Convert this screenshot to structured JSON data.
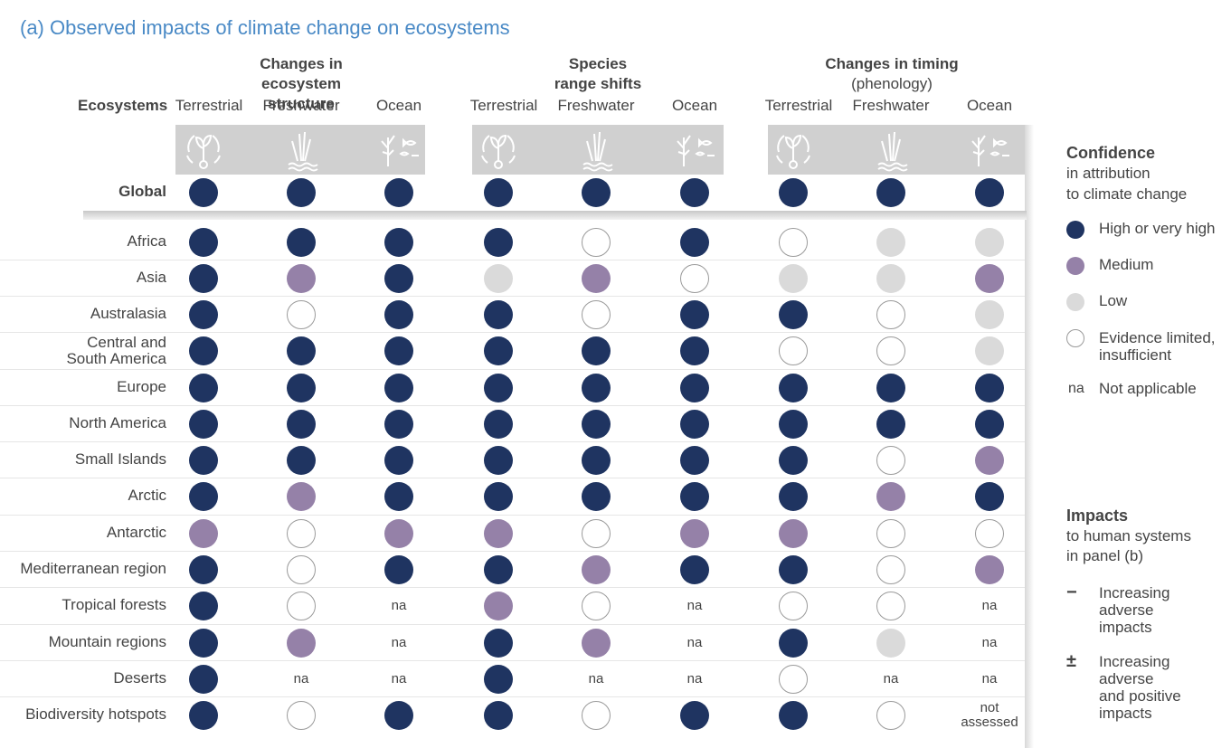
{
  "title": "(a) Observed impacts of climate change on ecosystems",
  "ecosystems_label": "Ecosystems",
  "groups": [
    {
      "line1": "Changes in",
      "line2": "ecosystem structure",
      "sub": ""
    },
    {
      "line1": "Species",
      "line2": "range shifts",
      "sub": ""
    },
    {
      "line1": "Changes in timing",
      "line2": "",
      "sub": "(phenology)"
    }
  ],
  "columns": [
    "Terrestrial",
    "Freshwater",
    "Ocean",
    "Terrestrial",
    "Freshwater",
    "Ocean",
    "Terrestrial",
    "Freshwater",
    "Ocean"
  ],
  "icons": [
    "terrestrial-icon",
    "freshwater-icon",
    "ocean-icon"
  ],
  "colors": {
    "high": "#1f3461",
    "medium": "#9581a8",
    "low": "#dadada",
    "limited": "#ffffff",
    "title": "#4a8ac6"
  },
  "legend": {
    "confidence_title": "Confidence",
    "confidence_sub1": "in attribution",
    "confidence_sub2": "to climate change",
    "items": [
      {
        "key": "high",
        "label": "High or very high"
      },
      {
        "key": "medium",
        "label": "Medium"
      },
      {
        "key": "low",
        "label": "Low"
      },
      {
        "key": "limited",
        "label": "Evidence limited,",
        "label2": "insufficient"
      },
      {
        "key": "na",
        "symbol": "na",
        "label": "Not applicable"
      }
    ],
    "impacts_title": "Impacts",
    "impacts_sub1": "to human systems",
    "impacts_sub2": "in panel (b)",
    "impact_items": [
      {
        "symbol": "−",
        "l1": "Increasing",
        "l2": "adverse",
        "l3": "impacts"
      },
      {
        "symbol": "±",
        "l1": "Increasing",
        "l2": "adverse",
        "l3": "and positive",
        "l4": "impacts"
      }
    ]
  },
  "chart_data": {
    "type": "table",
    "columns": [
      "Terrestrial",
      "Freshwater",
      "Ocean",
      "Terrestrial",
      "Freshwater",
      "Ocean",
      "Terrestrial",
      "Freshwater",
      "Ocean"
    ],
    "rows": [
      {
        "label": "Global",
        "values": [
          "high",
          "high",
          "high",
          "high",
          "high",
          "high",
          "high",
          "high",
          "high"
        ]
      },
      {
        "label": "Africa",
        "values": [
          "high",
          "high",
          "high",
          "high",
          "limited",
          "high",
          "limited",
          "low",
          "low"
        ]
      },
      {
        "label": "Asia",
        "values": [
          "high",
          "medium",
          "high",
          "low",
          "medium",
          "limited",
          "low",
          "low",
          "medium"
        ]
      },
      {
        "label": "Australasia",
        "values": [
          "high",
          "limited",
          "high",
          "high",
          "limited",
          "high",
          "high",
          "limited",
          "low"
        ]
      },
      {
        "label": "Central and South America",
        "label1": "Central and",
        "label2": "South America",
        "values": [
          "high",
          "high",
          "high",
          "high",
          "high",
          "high",
          "limited",
          "limited",
          "low"
        ]
      },
      {
        "label": "Europe",
        "values": [
          "high",
          "high",
          "high",
          "high",
          "high",
          "high",
          "high",
          "high",
          "high"
        ]
      },
      {
        "label": "North America",
        "values": [
          "high",
          "high",
          "high",
          "high",
          "high",
          "high",
          "high",
          "high",
          "high"
        ]
      },
      {
        "label": "Small Islands",
        "values": [
          "high",
          "high",
          "high",
          "high",
          "high",
          "high",
          "high",
          "limited",
          "medium"
        ]
      },
      {
        "label": "Arctic",
        "values": [
          "high",
          "medium",
          "high",
          "high",
          "high",
          "high",
          "high",
          "medium",
          "high"
        ]
      },
      {
        "label": "Antarctic",
        "values": [
          "medium",
          "limited",
          "medium",
          "medium",
          "limited",
          "medium",
          "medium",
          "limited",
          "limited"
        ]
      },
      {
        "label": "Mediterranean region",
        "values": [
          "high",
          "limited",
          "high",
          "high",
          "medium",
          "high",
          "high",
          "limited",
          "medium"
        ]
      },
      {
        "label": "Tropical forests",
        "values": [
          "high",
          "limited",
          "na",
          "medium",
          "limited",
          "na",
          "limited",
          "limited",
          "na"
        ]
      },
      {
        "label": "Mountain regions",
        "values": [
          "high",
          "medium",
          "na",
          "high",
          "medium",
          "na",
          "high",
          "low",
          "na"
        ]
      },
      {
        "label": "Deserts",
        "values": [
          "high",
          "na",
          "na",
          "high",
          "na",
          "na",
          "limited",
          "na",
          "na"
        ]
      },
      {
        "label": "Biodiversity hotspots",
        "values": [
          "high",
          "limited",
          "high",
          "high",
          "limited",
          "high",
          "high",
          "limited",
          "not assessed"
        ]
      }
    ]
  }
}
